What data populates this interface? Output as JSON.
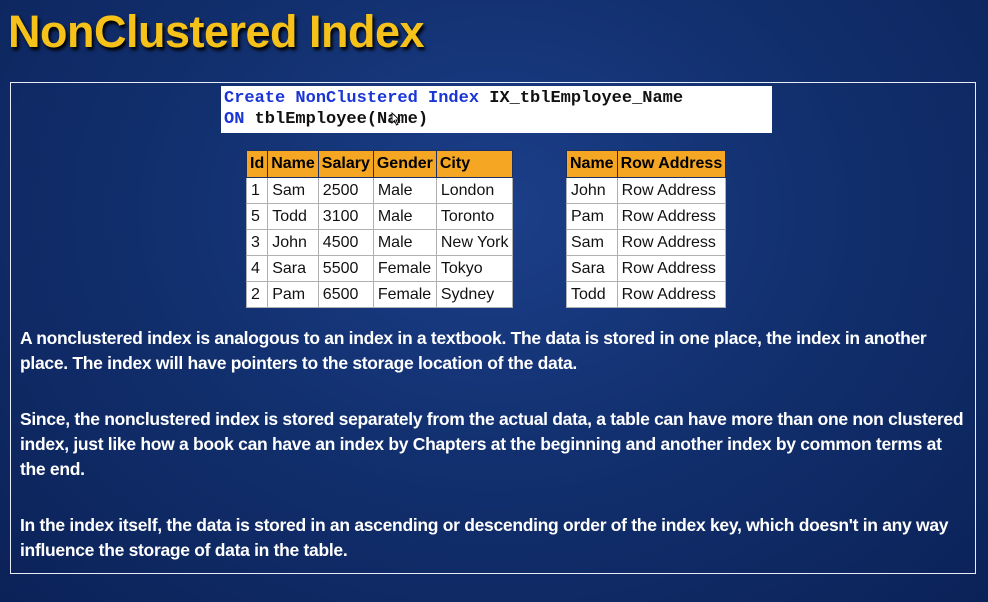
{
  "slide": {
    "title": "NonClustered Index",
    "code": {
      "line1": {
        "kw": "Create NonClustered Index",
        "rest": " IX_tblEmployee_Name"
      },
      "line2": {
        "kw": "ON",
        "rest": " tblEmployee(Name)"
      }
    },
    "employee_table": {
      "headers": [
        "Id",
        "Name",
        "Salary",
        "Gender",
        "City"
      ],
      "rows": [
        [
          "1",
          "Sam",
          "2500",
          "Male",
          "London"
        ],
        [
          "5",
          "Todd",
          "3100",
          "Male",
          "Toronto"
        ],
        [
          "3",
          "John",
          "4500",
          "Male",
          "New York"
        ],
        [
          "4",
          "Sara",
          "5500",
          "Female",
          "Tokyo"
        ],
        [
          "2",
          "Pam",
          "6500",
          "Female",
          "Sydney"
        ]
      ]
    },
    "index_table": {
      "headers": [
        "Name",
        "Row Address"
      ],
      "rows": [
        [
          "John",
          "Row Address"
        ],
        [
          "Pam",
          "Row Address"
        ],
        [
          "Sam",
          "Row Address"
        ],
        [
          "Sara",
          "Row Address"
        ],
        [
          "Todd",
          "Row Address"
        ]
      ]
    },
    "paragraphs": [
      "A nonclustered index is analogous to an index in a textbook. The data is stored in one place, the index in another place. The index will have pointers to the storage location of the data.",
      "Since, the nonclustered index is stored separately from the actual data, a table can have more than one non clustered index, just like how a book can have an index by Chapters at the beginning and another index by common terms at the end.",
      "In the index itself, the data is stored in an ascending or descending order of the index key, which doesn't in any way influence the storage of data in the table."
    ]
  }
}
